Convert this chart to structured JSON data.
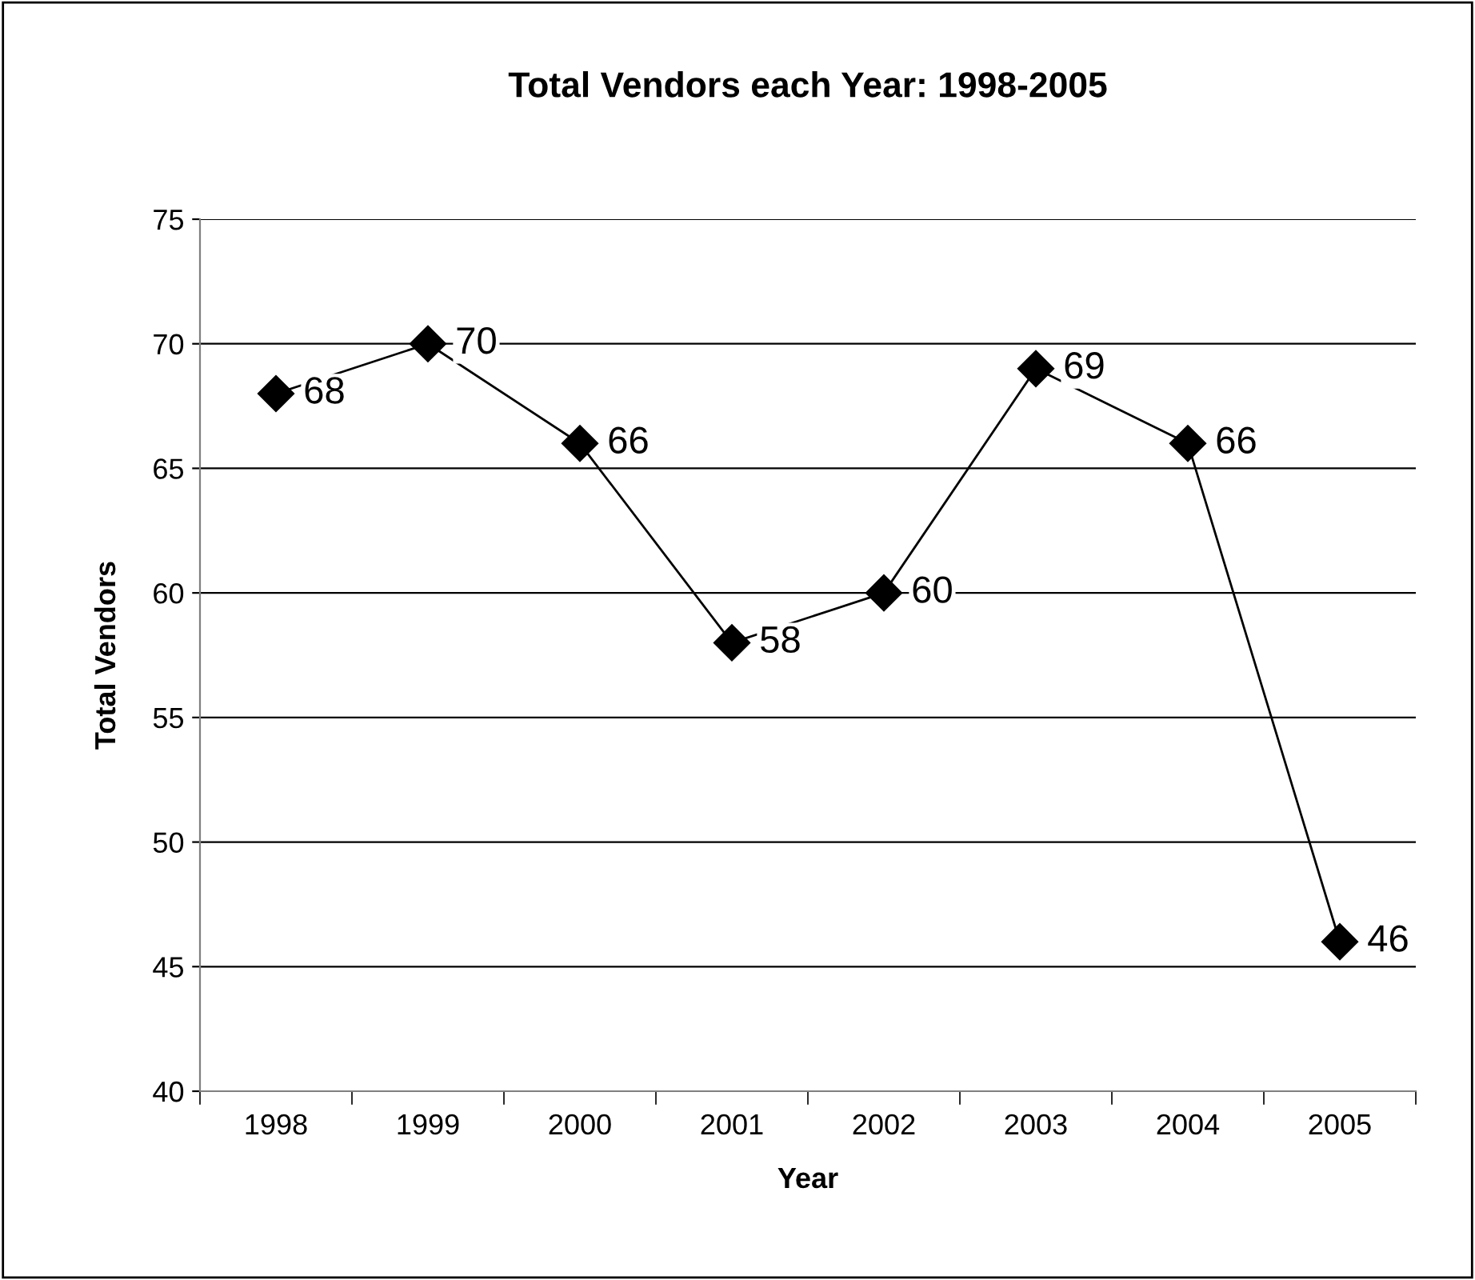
{
  "chart_data": {
    "type": "line",
    "title": "Total Vendors each Year: 1998-2005",
    "xlabel": "Year",
    "ylabel": "Total Vendors",
    "categories": [
      "1998",
      "1999",
      "2000",
      "2001",
      "2002",
      "2003",
      "2004",
      "2005"
    ],
    "series": [
      {
        "color": "#000000",
        "values": [
          68,
          70,
          66,
          58,
          60,
          69,
          66,
          46
        ]
      }
    ],
    "ylim": [
      40,
      75
    ],
    "yticks": [
      40,
      45,
      50,
      55,
      60,
      65,
      70,
      75
    ],
    "grid": "y",
    "marker": "diamond",
    "line_style": "solid",
    "data_labels": true,
    "legend": false
  }
}
